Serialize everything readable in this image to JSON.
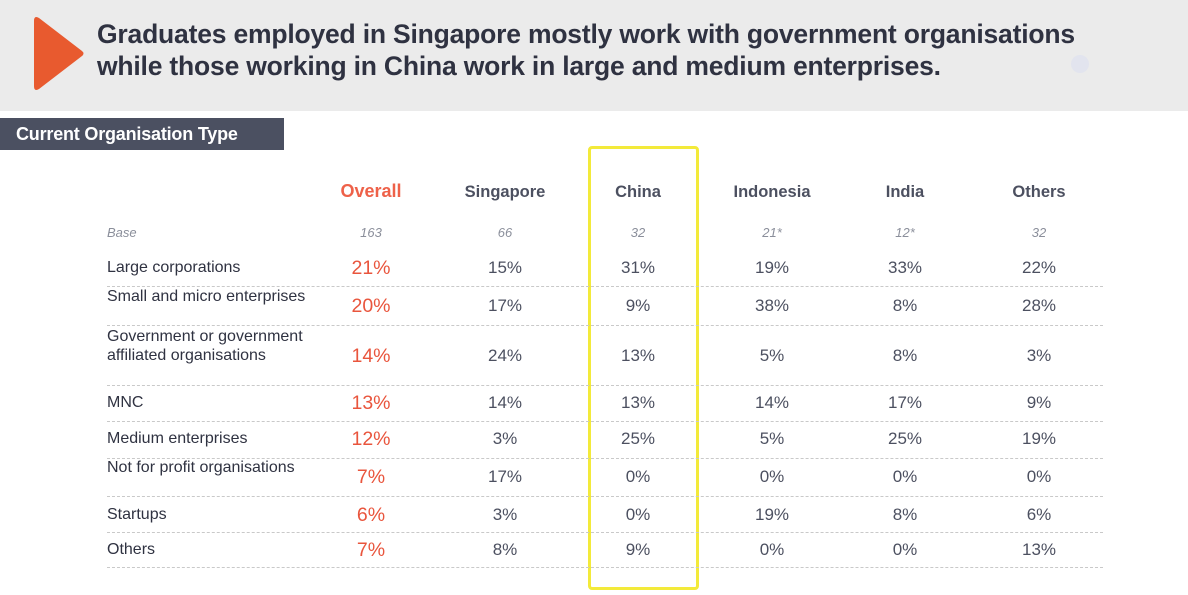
{
  "header": {
    "title_line1": "Graduates employed in Singapore mostly work with government organisations",
    "title_line2": "while those working in China work in large and medium enterprises.",
    "accent_color": "#e85a2f"
  },
  "section_label": "Current Organisation Type",
  "chart_data": {
    "type": "table",
    "columns": [
      "Overall",
      "Singapore",
      "China",
      "Indonesia",
      "India",
      "Others"
    ],
    "highlighted_column": "China",
    "base_label": "Base",
    "base": [
      "163",
      "66",
      "32",
      "21*",
      "12*",
      "32"
    ],
    "rows": [
      {
        "label": "Large corporations",
        "values": [
          "21%",
          "15%",
          "31%",
          "19%",
          "33%",
          "22%"
        ]
      },
      {
        "label": "Small and micro enterprises",
        "values": [
          "20%",
          "17%",
          "9%",
          "38%",
          "8%",
          "28%"
        ]
      },
      {
        "label": "Government or government affiliated organisations",
        "values": [
          "14%",
          "24%",
          "13%",
          "5%",
          "8%",
          "3%"
        ]
      },
      {
        "label": "MNC",
        "values": [
          "13%",
          "14%",
          "13%",
          "14%",
          "17%",
          "9%"
        ]
      },
      {
        "label": "Medium enterprises",
        "values": [
          "12%",
          "3%",
          "25%",
          "5%",
          "25%",
          "19%"
        ]
      },
      {
        "label": "Not for profit organisations",
        "values": [
          "7%",
          "17%",
          "0%",
          "0%",
          "0%",
          "0%"
        ]
      },
      {
        "label": "Startups",
        "values": [
          "6%",
          "3%",
          "0%",
          "19%",
          "8%",
          "6%"
        ]
      },
      {
        "label": "Others",
        "values": [
          "7%",
          "8%",
          "9%",
          "0%",
          "0%",
          "13%"
        ]
      }
    ]
  }
}
